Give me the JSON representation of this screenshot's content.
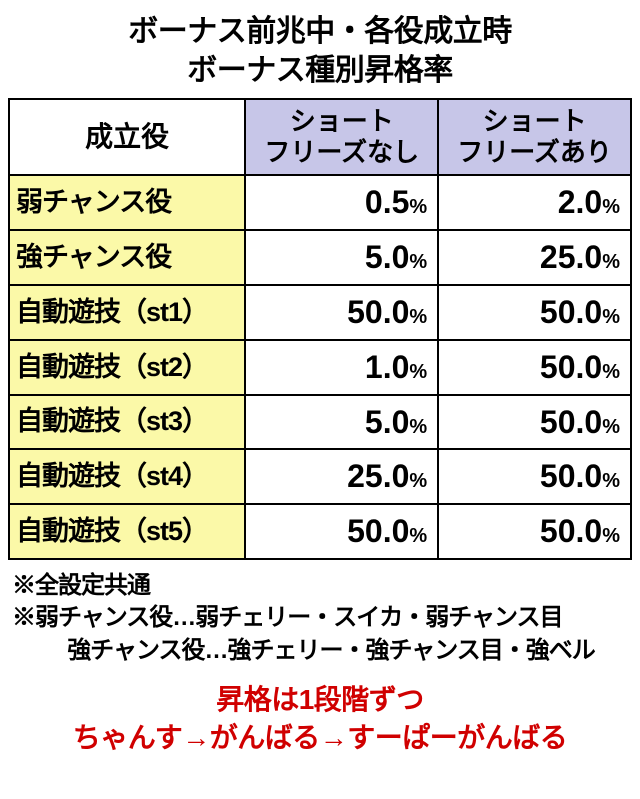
{
  "title_line1": "ボーナス前兆中・各役成立時",
  "title_line2": "ボーナス種別昇格率",
  "colors": {
    "header_bg": "#c7c6e8",
    "rowlabel_bg": "#fbf9a8",
    "border": "#000000",
    "text": "#000000",
    "emph": "#d00000"
  },
  "columns": {
    "corner": "成立役",
    "col1_line1": "ショート",
    "col1_line2": "フリーズなし",
    "col2_line1": "ショート",
    "col2_line2": "フリーズあり",
    "width_label_pct": 38,
    "width_val_pct": 31
  },
  "rows": [
    {
      "label": "弱チャンス役",
      "v1": "0.5",
      "v2": "2.0"
    },
    {
      "label": "強チャンス役",
      "v1": "5.0",
      "v2": "25.0"
    },
    {
      "label": "自動遊技（st1）",
      "v1": "50.0",
      "v2": "50.0"
    },
    {
      "label": "自動遊技（st2）",
      "v1": "1.0",
      "v2": "50.0"
    },
    {
      "label": "自動遊技（st3）",
      "v1": "5.0",
      "v2": "50.0"
    },
    {
      "label": "自動遊技（st4）",
      "v1": "25.0",
      "v2": "50.0"
    },
    {
      "label": "自動遊技（st5）",
      "v1": "50.0",
      "v2": "50.0"
    }
  ],
  "unit": "%",
  "notes": {
    "line1": "※全設定共通",
    "line2": "※弱チャンス役…弱チェリー・スイカ・弱チャンス目",
    "line3": "強チャンス役…強チェリー・強チャンス目・強ベル"
  },
  "emph": {
    "line1": "昇格は1段階ずつ",
    "line2": "ちゃんす→がんばる→すーぱーがんばる"
  }
}
